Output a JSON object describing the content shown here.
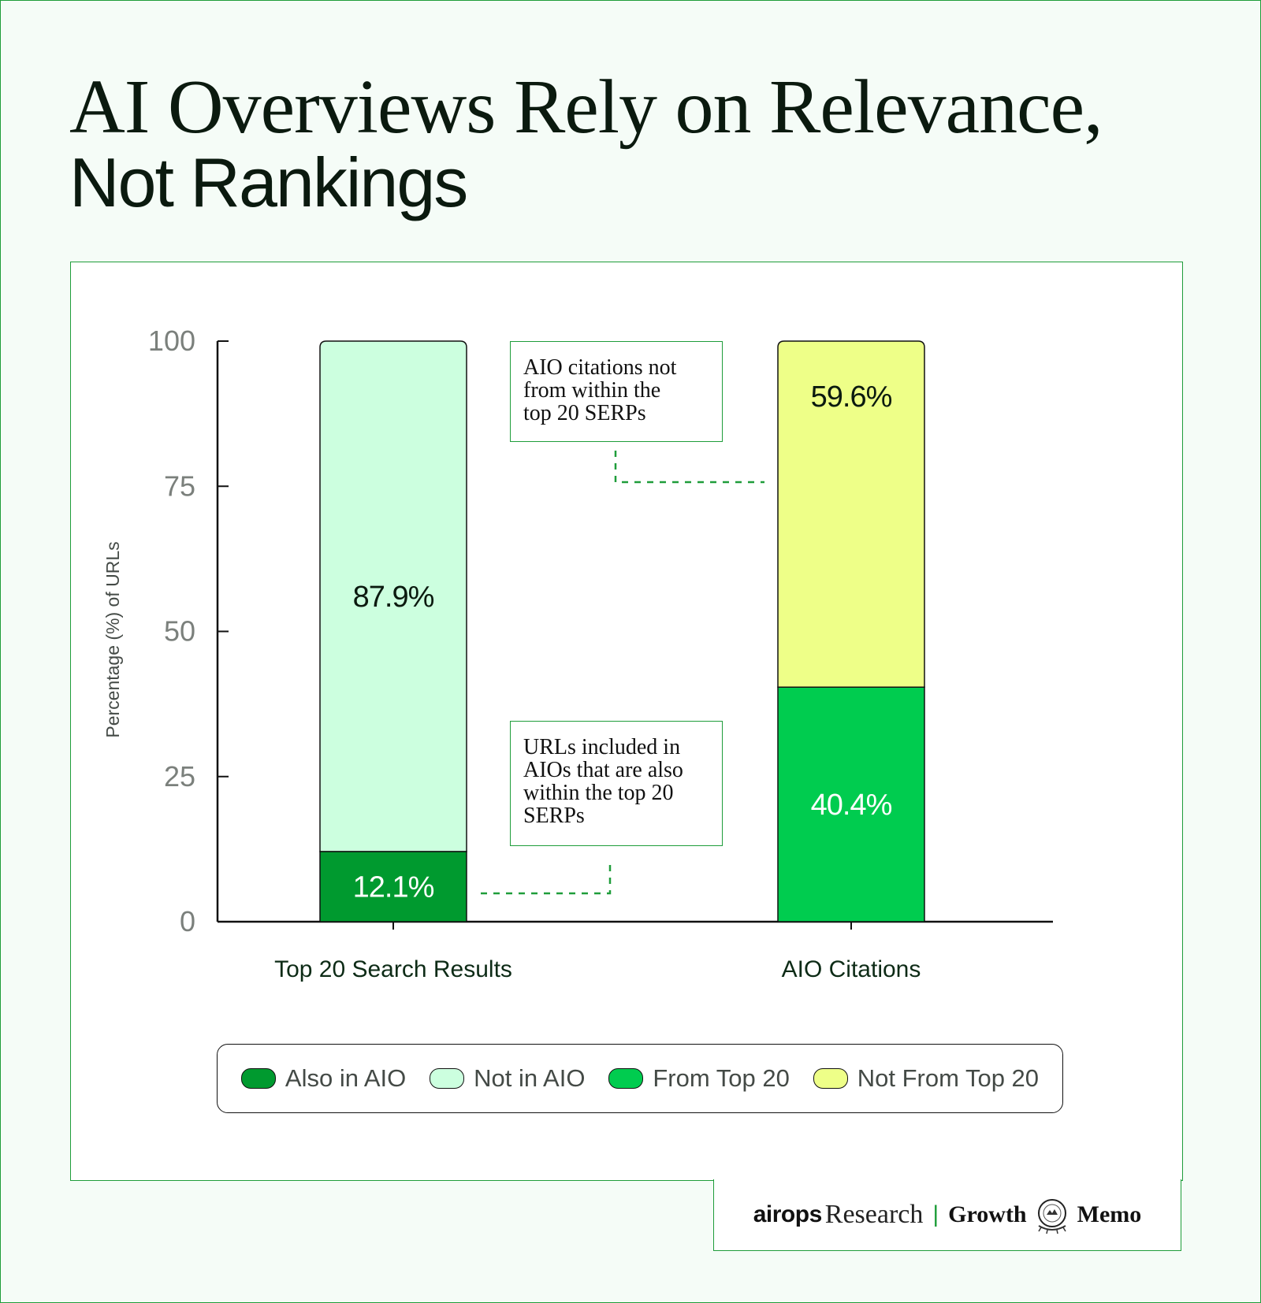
{
  "title": {
    "line1": "AI Overviews Rely on Relevance,",
    "line2": "Not Rankings"
  },
  "chart_data": {
    "type": "bar",
    "stacked": true,
    "categories": [
      "Top 20 Search Results",
      "AIO Citations"
    ],
    "ylabel": "Percentage (%) of URLs",
    "xlabel": "",
    "ylim": [
      0,
      100
    ],
    "yticks": [
      0,
      25,
      50,
      75,
      100
    ],
    "grid": false,
    "legend_position": "bottom",
    "series": [
      {
        "name": "Also in AIO",
        "color": "#009a2f",
        "values": [
          12.1,
          null
        ],
        "labels": [
          "12.1%",
          ""
        ]
      },
      {
        "name": "Not in AIO",
        "color": "#ccffdf",
        "values": [
          87.9,
          null
        ],
        "labels": [
          "87.9%",
          ""
        ]
      },
      {
        "name": "From Top 20",
        "color": "#00cc4f",
        "values": [
          null,
          40.4
        ],
        "labels": [
          "",
          "40.4%"
        ]
      },
      {
        "name": "Not From Top 20",
        "color": "#eeff88",
        "values": [
          null,
          59.6
        ],
        "labels": [
          "",
          "59.6%"
        ]
      }
    ],
    "annotations": [
      {
        "id": "top",
        "text": "AIO citations not from within the top 20 SERPs",
        "lines": [
          "AIO citations not",
          "from within the",
          "top 20 SERPs"
        ]
      },
      {
        "id": "bottom",
        "text": "URLs included in AIOs that are also within the top 20 SERPs",
        "lines": [
          "URLs included in",
          "AIOs that are also",
          "within the top 20",
          "SERPs"
        ]
      }
    ]
  },
  "footer": {
    "airops": "airops",
    "research": "Research",
    "separator": "|",
    "growth": "Growth",
    "memo": "Memo",
    "seal_text": "GROWTH MEMO"
  }
}
